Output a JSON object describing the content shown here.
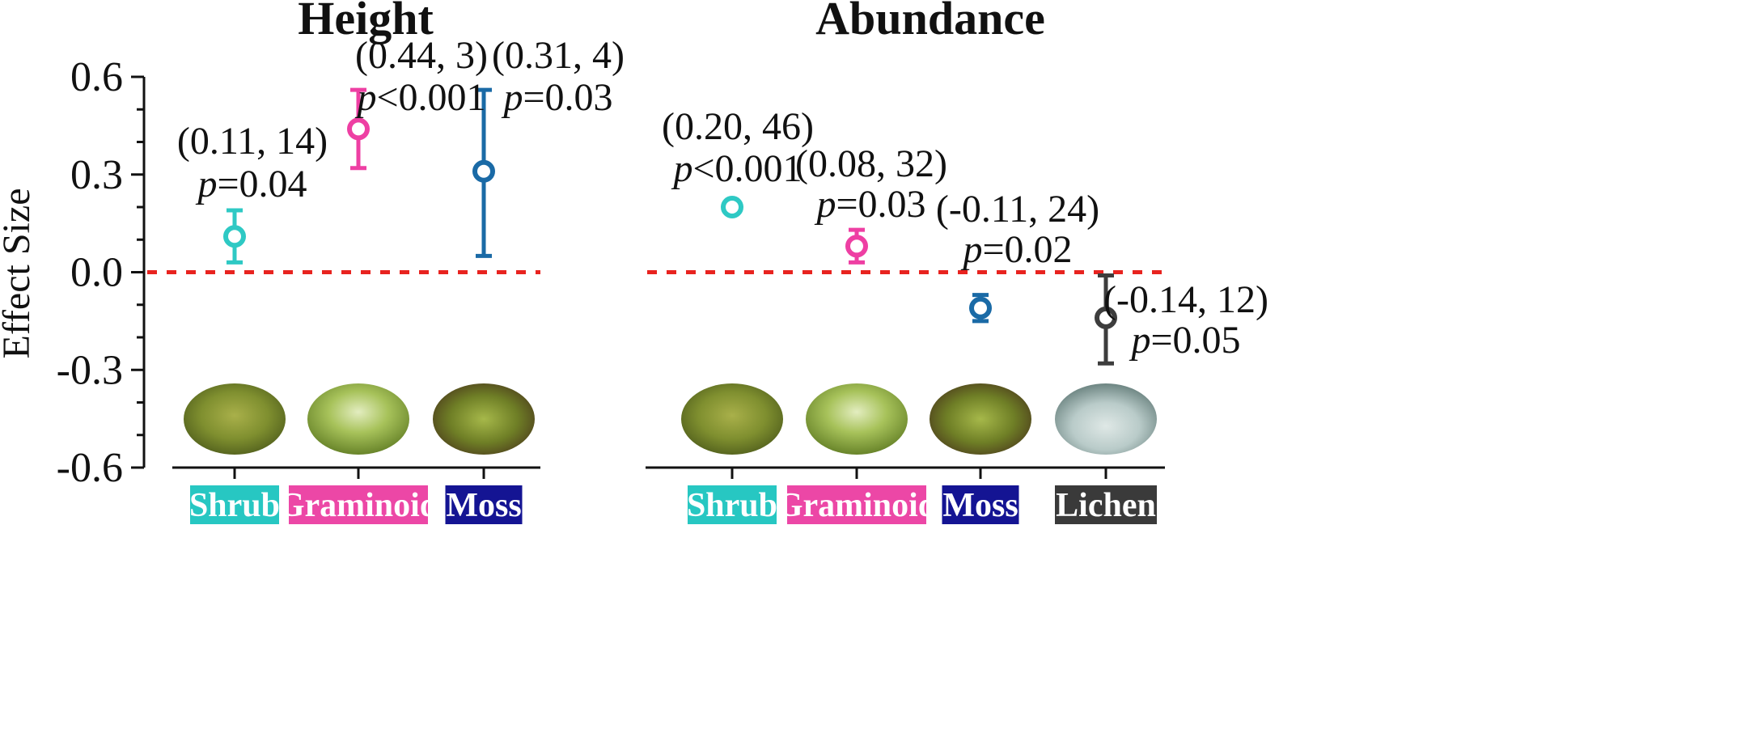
{
  "chart_data": [
    {
      "type": "scatter",
      "title": "Height",
      "xlabel": "",
      "ylabel": "Effect Size",
      "ylim": [
        -0.6,
        0.6
      ],
      "yticks": [
        "0.6",
        "0.3",
        "0.0",
        "-0.3",
        "-0.6"
      ],
      "reference_line": 0.0,
      "points": [
        {
          "category": "Shrub",
          "value": 0.11,
          "ci": [
            0.03,
            0.19
          ],
          "annot1": "(0.11, 14)",
          "p_prefix": "p",
          "p_text": "=0.04",
          "color": "#2ec9c4",
          "label_bg": "#27c7c2"
        },
        {
          "category": "Graminoid",
          "value": 0.44,
          "ci": [
            0.32,
            0.56
          ],
          "annot1": "(0.44, 3)",
          "p_prefix": "p",
          "p_text": "<0.001",
          "color": "#ee3fa3",
          "label_bg": "#ec47a6"
        },
        {
          "category": "Moss",
          "value": 0.31,
          "ci": [
            0.05,
            0.56
          ],
          "annot1": "(0.31, 4)",
          "p_prefix": "p",
          "p_text": "=0.03",
          "color": "#1a6aa6",
          "label_bg": "#141493"
        }
      ]
    },
    {
      "type": "scatter",
      "title": "Abundance",
      "xlabel": "",
      "ylabel": "",
      "ylim": [
        -0.6,
        0.6
      ],
      "reference_line": 0.0,
      "points": [
        {
          "category": "Shrub",
          "value": 0.2,
          "ci": [
            0.19,
            0.21
          ],
          "annot1": "(0.20, 46)",
          "p_prefix": "p",
          "p_text": "<0.001",
          "color": "#2ec9c4",
          "label_bg": "#27c7c2"
        },
        {
          "category": "Graminoid",
          "value": 0.08,
          "ci": [
            0.03,
            0.13
          ],
          "annot1": "(0.08, 32)",
          "p_prefix": "p",
          "p_text": "=0.03",
          "color": "#ee3fa3",
          "label_bg": "#ec47a6"
        },
        {
          "category": "Moss",
          "value": -0.11,
          "ci": [
            -0.15,
            -0.07
          ],
          "annot1": "(-0.11, 24)",
          "p_prefix": "p",
          "p_text": "=0.02",
          "color": "#1a6aa6",
          "label_bg": "#141493"
        },
        {
          "category": "Lichen",
          "value": -0.14,
          "ci": [
            -0.28,
            -0.01
          ],
          "annot1": "(-0.14, 12)",
          "p_prefix": "p",
          "p_text": "=0.05",
          "color": "#3d3d3d",
          "label_bg": "#3a3a3a"
        }
      ]
    }
  ],
  "colors": {
    "reference_line": "#e8231f",
    "axis": "#111111"
  }
}
